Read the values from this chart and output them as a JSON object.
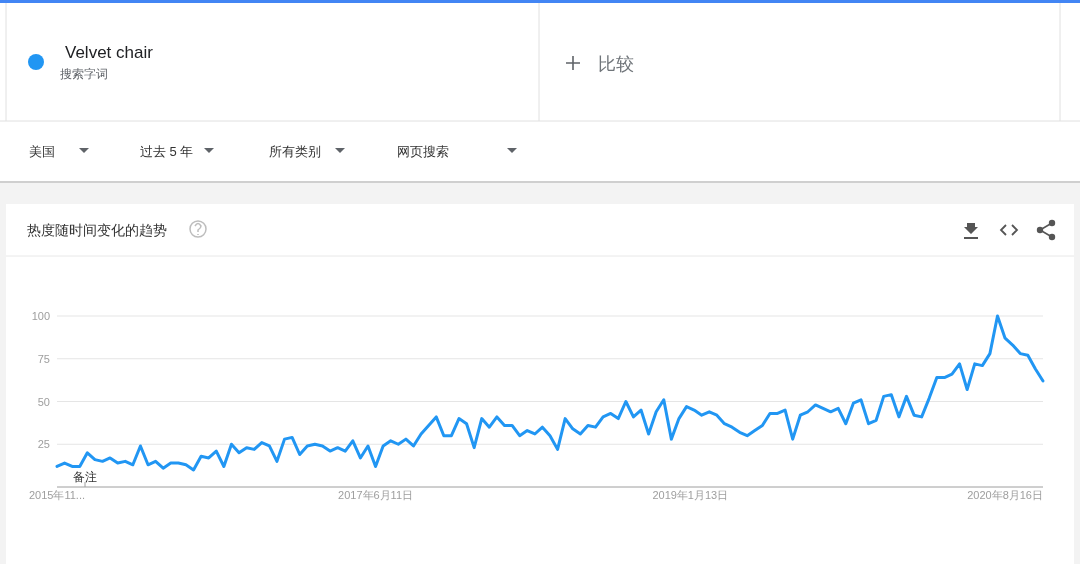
{
  "chart_data": {
    "type": "line",
    "title": "热度随时间变化的趋势",
    "legend": "top",
    "grid": "y",
    "marker": "none",
    "line_style": "solid",
    "annotations": [
      "搜索字词",
      "比较",
      "美国",
      "过去 5 年",
      "所有类别",
      "网页搜索",
      "备注"
    ],
    "xlim": [
      "2015-11-01",
      "2020-10-25"
    ],
    "ylim": [
      0,
      100
    ],
    "xticks": [
      {
        "value": "2015-11-01",
        "label": "2015年11..."
      },
      {
        "value": "2017-06-11",
        "label": "2017年6月11日"
      },
      {
        "value": "2019-01-13",
        "label": "2019年1月13日"
      },
      {
        "value": "2020-08-16",
        "label": "2020年8月16日"
      }
    ],
    "yticks": [
      25,
      50,
      75,
      100
    ],
    "x": [
      "2015-11-01",
      "2015-11-15",
      "2015-11-29",
      "2015-12-13",
      "2015-12-27",
      "2016-01-10",
      "2016-01-24",
      "2016-02-07",
      "2016-02-21",
      "2016-03-06",
      "2016-03-20",
      "2016-04-03",
      "2016-04-17",
      "2016-05-01",
      "2016-05-15",
      "2016-05-29",
      "2016-06-12",
      "2016-06-26",
      "2016-07-10",
      "2016-07-24",
      "2016-08-07",
      "2016-08-21",
      "2016-09-04",
      "2016-09-18",
      "2016-10-02",
      "2016-10-16",
      "2016-10-30",
      "2016-11-13",
      "2016-11-27",
      "2016-12-11",
      "2016-12-25",
      "2017-01-08",
      "2017-01-22",
      "2017-02-05",
      "2017-02-19",
      "2017-03-05",
      "2017-03-19",
      "2017-04-02",
      "2017-04-16",
      "2017-04-30",
      "2017-05-14",
      "2017-05-28",
      "2017-06-11",
      "2017-06-25",
      "2017-07-09",
      "2017-07-23",
      "2017-08-06",
      "2017-08-20",
      "2017-09-03",
      "2017-09-17",
      "2017-10-01",
      "2017-10-15",
      "2017-10-29",
      "2017-11-12",
      "2017-11-26",
      "2017-12-10",
      "2017-12-24",
      "2018-01-07",
      "2018-01-21",
      "2018-02-04",
      "2018-02-18",
      "2018-03-04",
      "2018-03-18",
      "2018-04-01",
      "2018-04-15",
      "2018-04-29",
      "2018-05-13",
      "2018-05-27",
      "2018-06-10",
      "2018-06-24",
      "2018-07-08",
      "2018-07-22",
      "2018-08-05",
      "2018-08-19",
      "2018-09-02",
      "2018-09-16",
      "2018-09-30",
      "2018-10-14",
      "2018-10-28",
      "2018-11-11",
      "2018-11-25",
      "2018-12-09",
      "2018-12-23",
      "2019-01-06",
      "2019-01-20",
      "2019-02-03",
      "2019-02-17",
      "2019-03-03",
      "2019-03-17",
      "2019-03-31",
      "2019-04-14",
      "2019-04-28",
      "2019-05-12",
      "2019-05-26",
      "2019-06-09",
      "2019-06-23",
      "2019-07-07",
      "2019-07-21",
      "2019-08-04",
      "2019-08-18",
      "2019-09-01",
      "2019-09-15",
      "2019-09-29",
      "2019-10-13",
      "2019-10-27",
      "2019-11-10",
      "2019-11-24",
      "2019-12-08",
      "2019-12-22",
      "2020-01-05",
      "2020-01-19",
      "2020-02-02",
      "2020-02-16",
      "2020-03-01",
      "2020-03-15",
      "2020-03-29",
      "2020-04-12",
      "2020-04-26",
      "2020-05-10",
      "2020-05-24",
      "2020-06-07",
      "2020-06-21",
      "2020-07-05",
      "2020-07-19",
      "2020-08-02",
      "2020-08-16",
      "2020-08-30",
      "2020-09-13",
      "2020-09-27",
      "2020-10-11",
      "2020-10-25"
    ],
    "series": [
      {
        "name": "Velvet chair",
        "color": "#2196f3",
        "values": [
          12,
          14,
          12,
          12,
          20,
          16,
          15,
          17,
          14,
          15,
          13,
          24,
          13,
          15,
          11,
          14,
          14,
          13,
          10,
          18,
          17,
          21,
          12,
          25,
          20,
          23,
          22,
          26,
          24,
          15,
          28,
          29,
          19,
          24,
          25,
          24,
          21,
          23,
          21,
          27,
          17,
          24,
          12,
          24,
          27,
          25,
          28,
          24,
          31,
          36,
          41,
          30,
          30,
          40,
          37,
          23,
          40,
          35,
          41,
          36,
          36,
          30,
          33,
          31,
          35,
          30,
          22,
          40,
          34,
          31,
          36,
          35,
          41,
          43,
          40,
          50,
          41,
          45,
          31,
          44,
          51,
          28,
          40,
          47,
          45,
          42,
          44,
          42,
          37,
          35,
          32,
          30,
          33,
          36,
          43,
          43,
          45,
          28,
          42,
          44,
          48,
          46,
          44,
          46,
          37,
          49,
          51,
          37,
          39,
          53,
          54,
          41,
          53,
          42,
          41,
          52,
          64,
          64,
          66,
          72,
          57,
          72,
          71,
          78,
          100,
          87,
          83,
          78,
          77,
          69,
          62
        ]
      }
    ]
  }
}
